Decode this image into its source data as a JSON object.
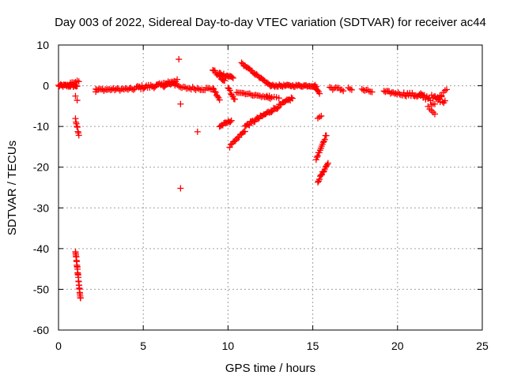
{
  "chart_data": {
    "type": "scatter",
    "title": "Day 003 of 2022, Sidereal Day-to-day VTEC variation (SDTVAR) for receiver ac44",
    "xlabel": "GPS time / hours",
    "ylabel": "SDTVAR / TECUs",
    "xlim": [
      0,
      25
    ],
    "ylim": [
      -60,
      10
    ],
    "xticks": [
      0,
      5,
      10,
      15,
      20,
      25
    ],
    "yticks": [
      10,
      0,
      -10,
      -20,
      -30,
      -40,
      -50,
      -60
    ],
    "grid": true,
    "marker": "+",
    "color": "#ff0000",
    "series": [
      {
        "name": "SDTVAR",
        "segments": [
          {
            "x0": 0.0,
            "x1": 1.1,
            "y0": 0,
            "y1": 0,
            "n": 26,
            "jitter": 0.7
          },
          {
            "x0": 0.7,
            "x1": 1.2,
            "y0": 0.5,
            "y1": 1.2,
            "n": 6,
            "jitter": 0.5
          },
          {
            "x0": 1.0,
            "x1": 1.3,
            "y0": -40.5,
            "y1": -52.5,
            "n": 26,
            "jitter": 0.8
          },
          {
            "x0": 1.0,
            "x1": 1.2,
            "y0": -8,
            "y1": -12,
            "n": 8,
            "jitter": 0.8
          },
          {
            "x0": 1.0,
            "x1": 1.1,
            "y0": -2.5,
            "y1": -3.5,
            "n": 2,
            "jitter": 0.3
          },
          {
            "x0": 2.2,
            "x1": 4.5,
            "y0": -1,
            "y1": -0.8,
            "n": 30,
            "jitter": 0.6
          },
          {
            "x0": 4.6,
            "x1": 7.0,
            "y0": -0.5,
            "y1": 0.5,
            "n": 38,
            "jitter": 1.0
          },
          {
            "x0": 6.2,
            "x1": 7.0,
            "y0": 0.5,
            "y1": 1.5,
            "n": 10,
            "jitter": 0.9
          },
          {
            "x0": 7.1,
            "x1": 9.0,
            "y0": -0.5,
            "y1": -0.8,
            "n": 22,
            "jitter": 0.8
          },
          {
            "x0": 9.1,
            "x1": 9.8,
            "y0": 4,
            "y1": 1,
            "n": 12,
            "jitter": 0.6
          },
          {
            "x0": 9.1,
            "x1": 9.5,
            "y0": -0.5,
            "y1": -3.5,
            "n": 8,
            "jitter": 0.5
          },
          {
            "x0": 9.5,
            "x1": 10.3,
            "y0": 3,
            "y1": 2,
            "n": 14,
            "jitter": 0.8
          },
          {
            "x0": 9.5,
            "x1": 10.2,
            "y0": -10,
            "y1": -8.5,
            "n": 12,
            "jitter": 0.6
          },
          {
            "x0": 10.0,
            "x1": 10.4,
            "y0": -0.5,
            "y1": -3.5,
            "n": 8,
            "jitter": 0.5
          },
          {
            "x0": 10.1,
            "x1": 11.0,
            "y0": -15,
            "y1": -11,
            "n": 14,
            "jitter": 0.6
          },
          {
            "x0": 10.8,
            "x1": 12.5,
            "y0": 5.5,
            "y1": 0,
            "n": 26,
            "jitter": 0.4
          },
          {
            "x0": 10.5,
            "x1": 12.5,
            "y0": -1.5,
            "y1": -3,
            "n": 24,
            "jitter": 0.4
          },
          {
            "x0": 11.0,
            "x1": 13.8,
            "y0": -10,
            "y1": -3,
            "n": 44,
            "jitter": 0.8
          },
          {
            "x0": 12.5,
            "x1": 15.2,
            "y0": 0,
            "y1": 0,
            "n": 42,
            "jitter": 0.5
          },
          {
            "x0": 12.3,
            "x1": 13.0,
            "y0": -2.5,
            "y1": -3,
            "n": 6,
            "jitter": 0.3
          },
          {
            "x0": 15.1,
            "x1": 15.4,
            "y0": 0,
            "y1": -2,
            "n": 6,
            "jitter": 0.4
          },
          {
            "x0": 15.2,
            "x1": 15.8,
            "y0": -18,
            "y1": -12,
            "n": 14,
            "jitter": 0.6
          },
          {
            "x0": 15.3,
            "x1": 15.5,
            "y0": -8,
            "y1": -7.5,
            "n": 3,
            "jitter": 0.2
          },
          {
            "x0": 15.3,
            "x1": 15.9,
            "y0": -23.5,
            "y1": -19,
            "n": 14,
            "jitter": 0.6
          },
          {
            "x0": 16.0,
            "x1": 16.8,
            "y0": -0.5,
            "y1": -1,
            "n": 10,
            "jitter": 0.8
          },
          {
            "x0": 17.1,
            "x1": 17.3,
            "y0": -0.5,
            "y1": -1,
            "n": 3,
            "jitter": 0.4
          },
          {
            "x0": 17.9,
            "x1": 18.5,
            "y0": -1,
            "y1": -1.5,
            "n": 8,
            "jitter": 0.6
          },
          {
            "x0": 19.2,
            "x1": 20.2,
            "y0": -1.5,
            "y1": -2,
            "n": 14,
            "jitter": 0.6
          },
          {
            "x0": 20.3,
            "x1": 21.5,
            "y0": -2,
            "y1": -2.5,
            "n": 18,
            "jitter": 1.0
          },
          {
            "x0": 21.3,
            "x1": 22.8,
            "y0": -2.5,
            "y1": -3.5,
            "n": 22,
            "jitter": 1.5
          },
          {
            "x0": 21.8,
            "x1": 22.2,
            "y0": -5,
            "y1": -7,
            "n": 5,
            "jitter": 0.6
          },
          {
            "x0": 22.0,
            "x1": 22.9,
            "y0": -5,
            "y1": -0.5,
            "n": 10,
            "jitter": 1.0
          }
        ],
        "isolated_points": [
          {
            "x": 7.1,
            "y": 6.5
          },
          {
            "x": 7.2,
            "y": -4.5
          },
          {
            "x": 7.2,
            "y": -25.2
          },
          {
            "x": 8.2,
            "y": -11.3
          },
          {
            "x": 2.2,
            "y": -1.5
          }
        ]
      }
    ]
  }
}
